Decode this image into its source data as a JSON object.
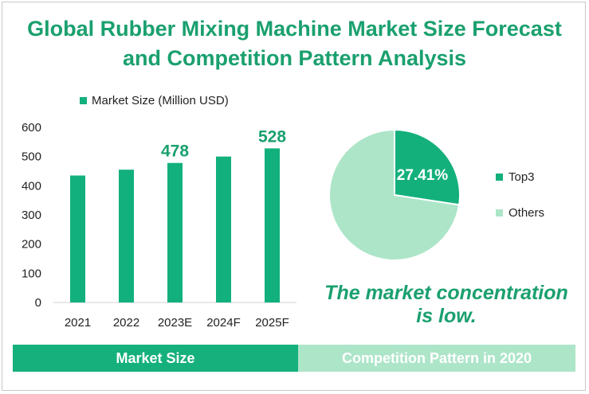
{
  "title_line1": "Global Rubber Mixing Machine Market Size Forecast",
  "title_line2": "and Competition Pattern Analysis",
  "note_line1": "The market concentration",
  "note_line2": "is low.",
  "footer_left": "Market Size",
  "footer_right": "Competition Pattern in 2020",
  "colors": {
    "title": "#1aa06e",
    "bar": "#12b07c",
    "pie_top3": "#14b07c",
    "pie_others": "#ade5c9"
  },
  "chart_data": [
    {
      "type": "bar",
      "categories": [
        "2021",
        "2022",
        "2023E",
        "2024F",
        "2025F"
      ],
      "series": [
        {
          "name": "Market Size (Million USD)",
          "values": [
            435,
            455,
            478,
            500,
            528
          ]
        }
      ],
      "data_labels": {
        "2023E": "478",
        "2025F": "528"
      },
      "ylim": [
        0,
        600
      ],
      "yticks": [
        0,
        100,
        200,
        300,
        400,
        500,
        600
      ],
      "grid": false,
      "legend": "top"
    },
    {
      "type": "pie",
      "labels": [
        "Top3",
        "Others"
      ],
      "values": [
        27.41,
        72.59
      ],
      "slice_label": "27.41%",
      "legend": "right"
    }
  ]
}
